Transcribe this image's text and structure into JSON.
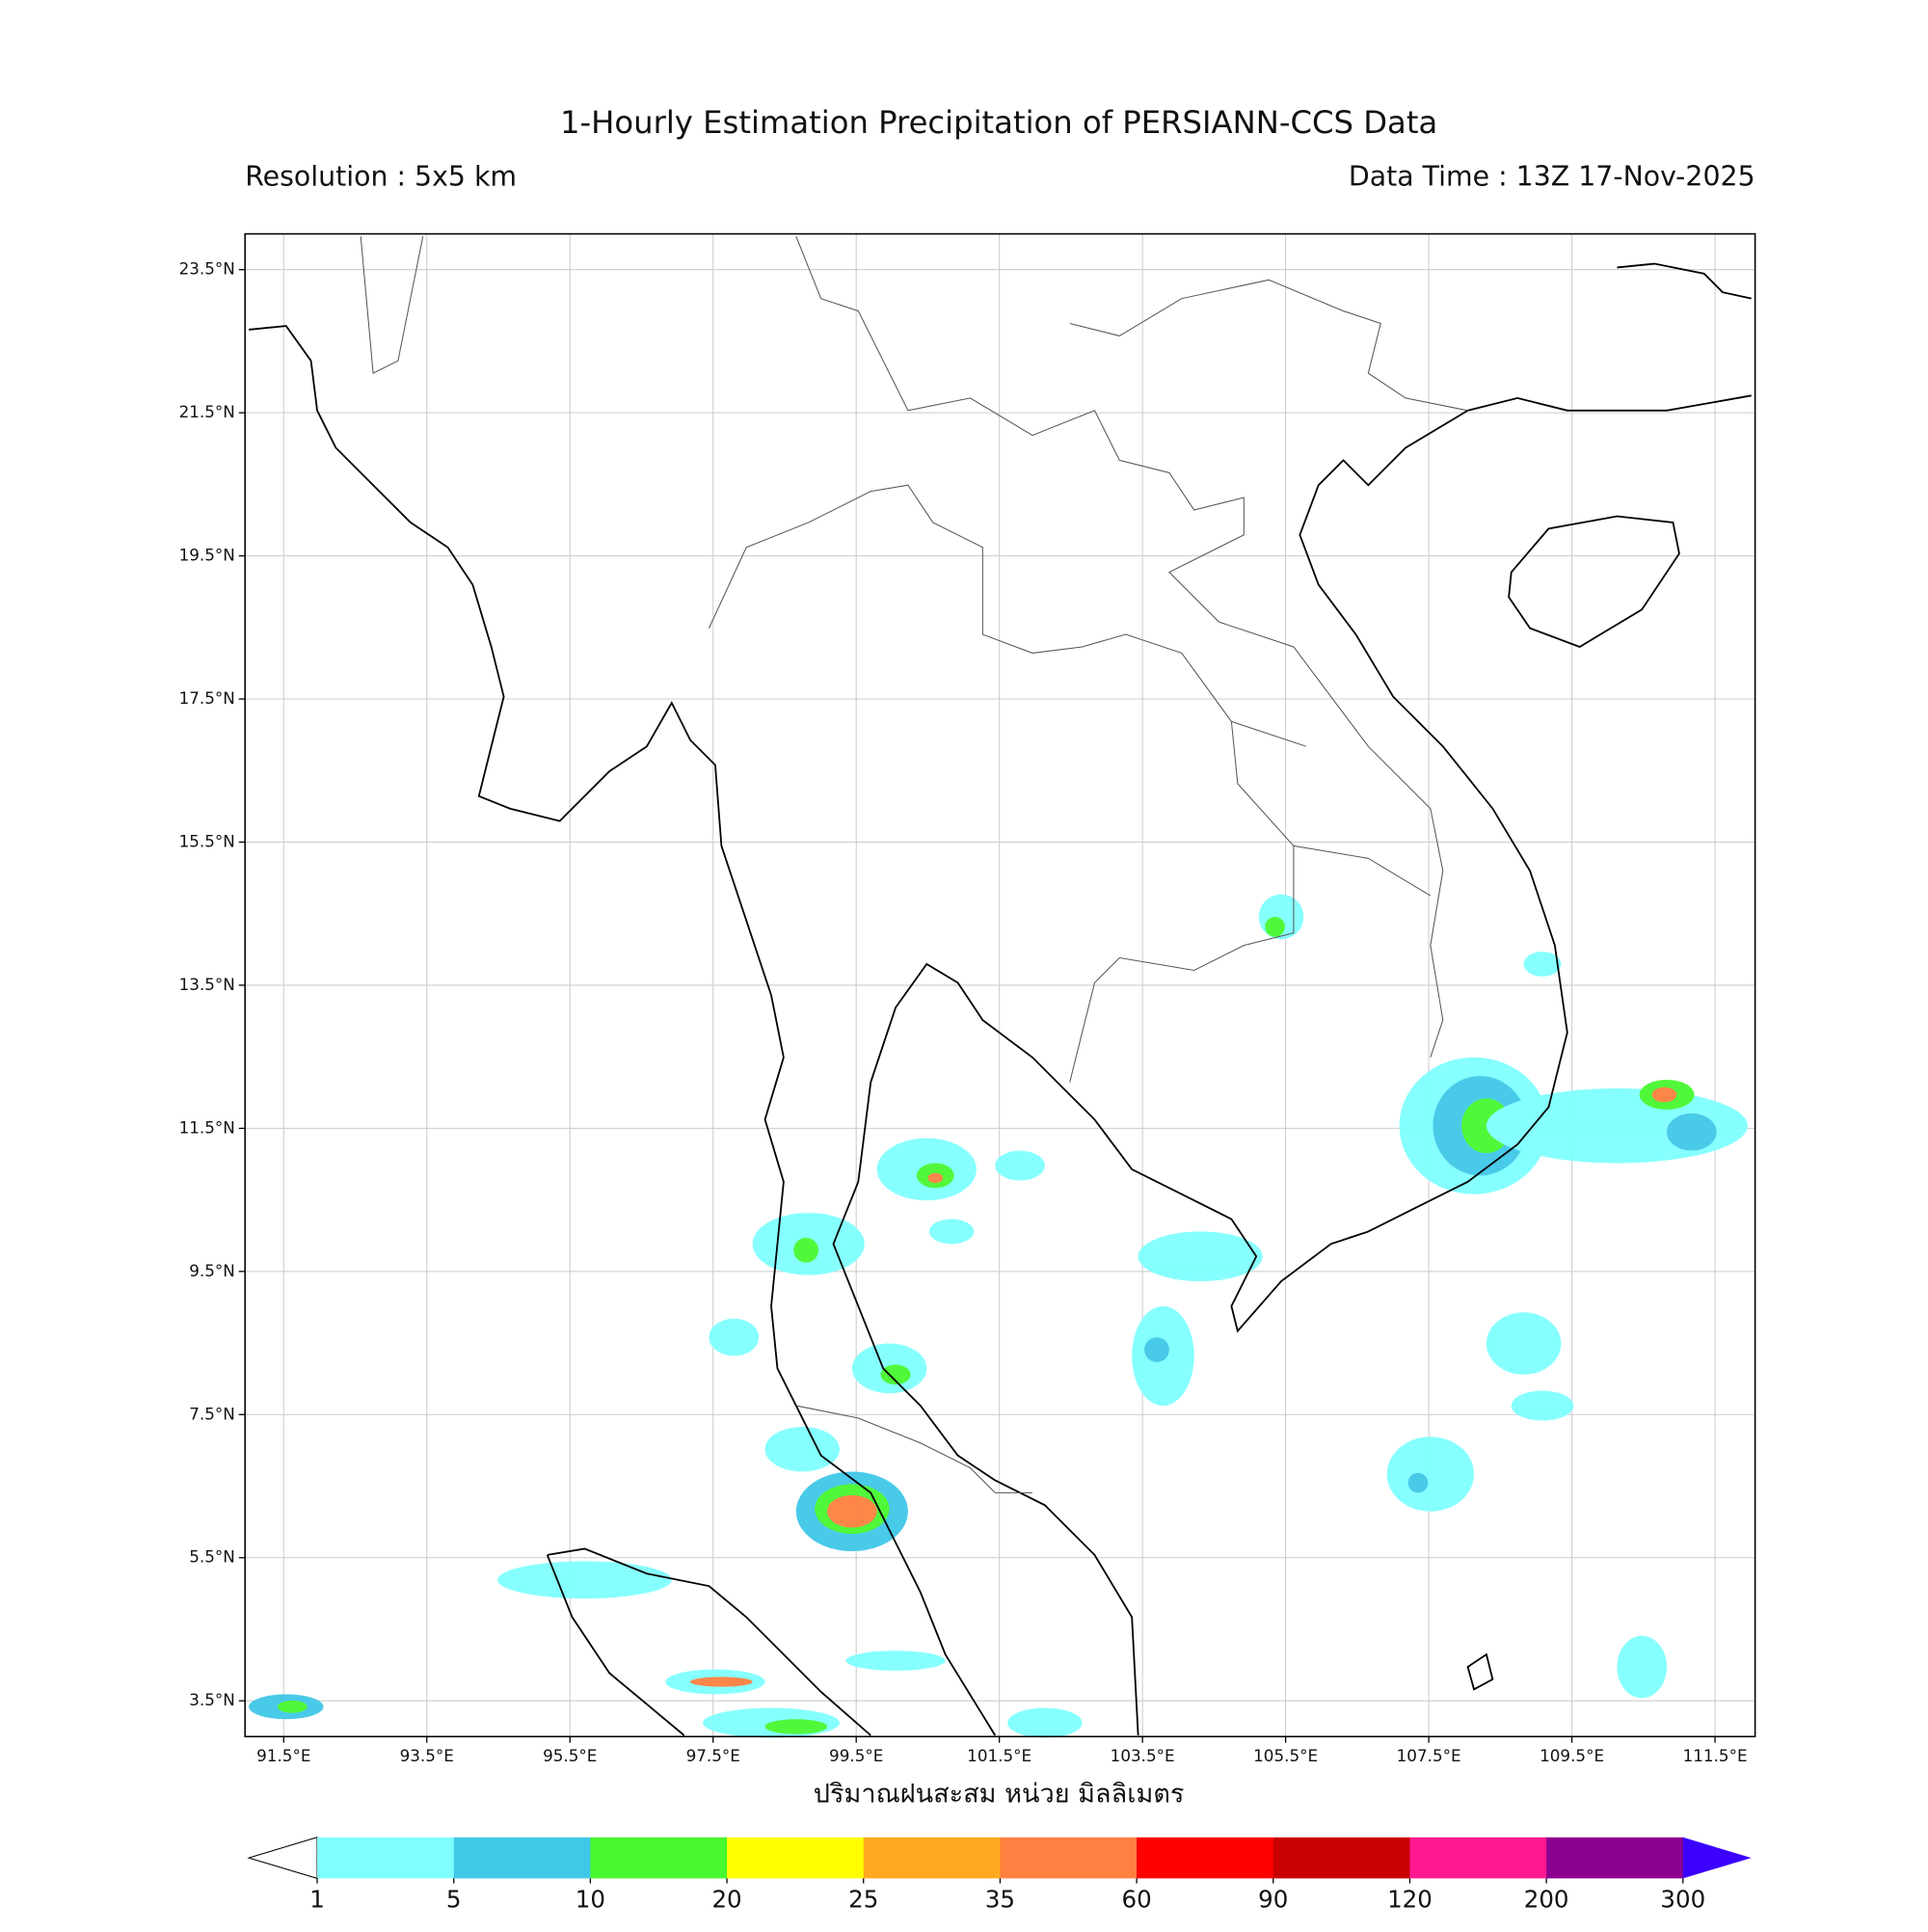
{
  "header": {
    "title": "1-Hourly Estimation Precipitation of PERSIANN-CCS Data",
    "resolution": "Resolution : 5x5 km",
    "data_time": "Data Time : 13Z 17-Nov-2025"
  },
  "map": {
    "xlim": [
      90.96,
      112.06
    ],
    "ylim": [
      3.0,
      24.0
    ],
    "xticks": [
      {
        "value": 91.5,
        "label": "91.5°E"
      },
      {
        "value": 93.5,
        "label": "93.5°E"
      },
      {
        "value": 95.5,
        "label": "95.5°E"
      },
      {
        "value": 97.5,
        "label": "97.5°E"
      },
      {
        "value": 99.5,
        "label": "99.5°E"
      },
      {
        "value": 101.5,
        "label": "101.5°E"
      },
      {
        "value": 103.5,
        "label": "103.5°E"
      },
      {
        "value": 105.5,
        "label": "105.5°E"
      },
      {
        "value": 107.5,
        "label": "107.5°E"
      },
      {
        "value": 109.5,
        "label": "109.5°E"
      },
      {
        "value": 111.5,
        "label": "111.5°E"
      }
    ],
    "yticks": [
      {
        "value": 23.5,
        "label": "23.5°N"
      },
      {
        "value": 21.5,
        "label": "21.5°N"
      },
      {
        "value": 19.5,
        "label": "19.5°N"
      },
      {
        "value": 17.5,
        "label": "17.5°N"
      },
      {
        "value": 15.5,
        "label": "15.5°N"
      },
      {
        "value": 13.5,
        "label": "13.5°N"
      },
      {
        "value": 11.5,
        "label": "11.5°N"
      },
      {
        "value": 9.5,
        "label": "9.5°N"
      },
      {
        "value": 7.5,
        "label": "7.5°N"
      },
      {
        "value": 5.5,
        "label": "5.5°N"
      },
      {
        "value": 3.5,
        "label": "3.5°N"
      }
    ],
    "grid": true,
    "xlabel": "ปริมาณฝนสะสม หน่วย มิลลิเมตร"
  },
  "colorbar": {
    "ticks": [
      1,
      5,
      10,
      20,
      25,
      35,
      60,
      90,
      120,
      200,
      300
    ],
    "colors": [
      "#80ffff",
      "#40c8e8",
      "#48f830",
      "#ffff00",
      "#ffa820",
      "#ff8040",
      "#ff0000",
      "#c80000",
      "#ff1890",
      "#8c0090"
    ],
    "extend_color": "#3c00ff"
  }
}
